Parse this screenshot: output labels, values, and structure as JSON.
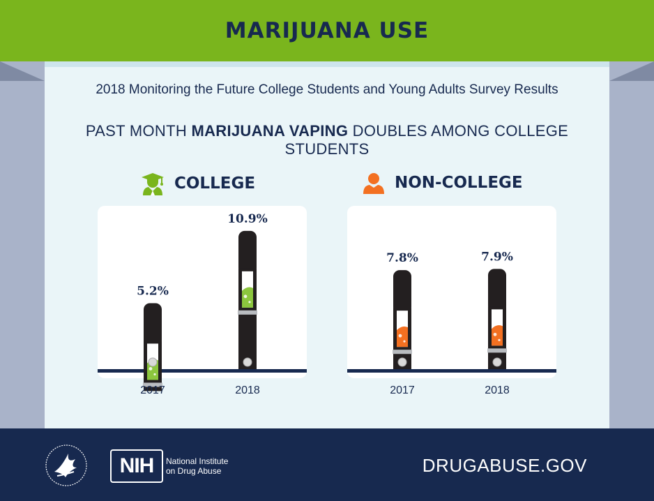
{
  "banner": {
    "title": "MARIJUANA USE"
  },
  "subtitle": "2018 Monitoring the Future College Students and Young Adults Survey Results",
  "headline": {
    "part1": "PAST MONTH ",
    "bold": "MARIJUANA VAPING",
    "part2": " DOUBLES AMONG COLLEGE STUDENTS"
  },
  "icons": {
    "college": "graduate-cap-person-icon",
    "non_college": "person-icon",
    "device": "vape-pen-icon",
    "seal": "hhs-eagle-seal-icon"
  },
  "colors": {
    "banner": "#7ab51d",
    "navy": "#17294f",
    "college_liquid": "#8cc63e",
    "non_college_liquid": "#f37021",
    "device": "#231f20",
    "side": "#a9b3c9"
  },
  "chart_data": [
    {
      "type": "bar",
      "title": "COLLEGE",
      "categories": [
        "2017",
        "2018"
      ],
      "values": [
        5.2,
        10.9
      ],
      "value_labels": [
        "5.2%",
        "10.9%"
      ],
      "xlabel": "",
      "ylabel": "",
      "ylim": [
        0,
        11
      ],
      "grid": false
    },
    {
      "type": "bar",
      "title": "NON-COLLEGE",
      "categories": [
        "2017",
        "2018"
      ],
      "values": [
        7.8,
        7.9
      ],
      "value_labels": [
        "7.8%",
        "7.9%"
      ],
      "xlabel": "",
      "ylabel": "",
      "ylim": [
        0,
        11
      ],
      "grid": false
    }
  ],
  "footer": {
    "nih_abbrev": "NIH",
    "nih_name_line1": "National Institute",
    "nih_name_line2": "on Drug Abuse",
    "website": "DRUGABUSE.GOV"
  }
}
